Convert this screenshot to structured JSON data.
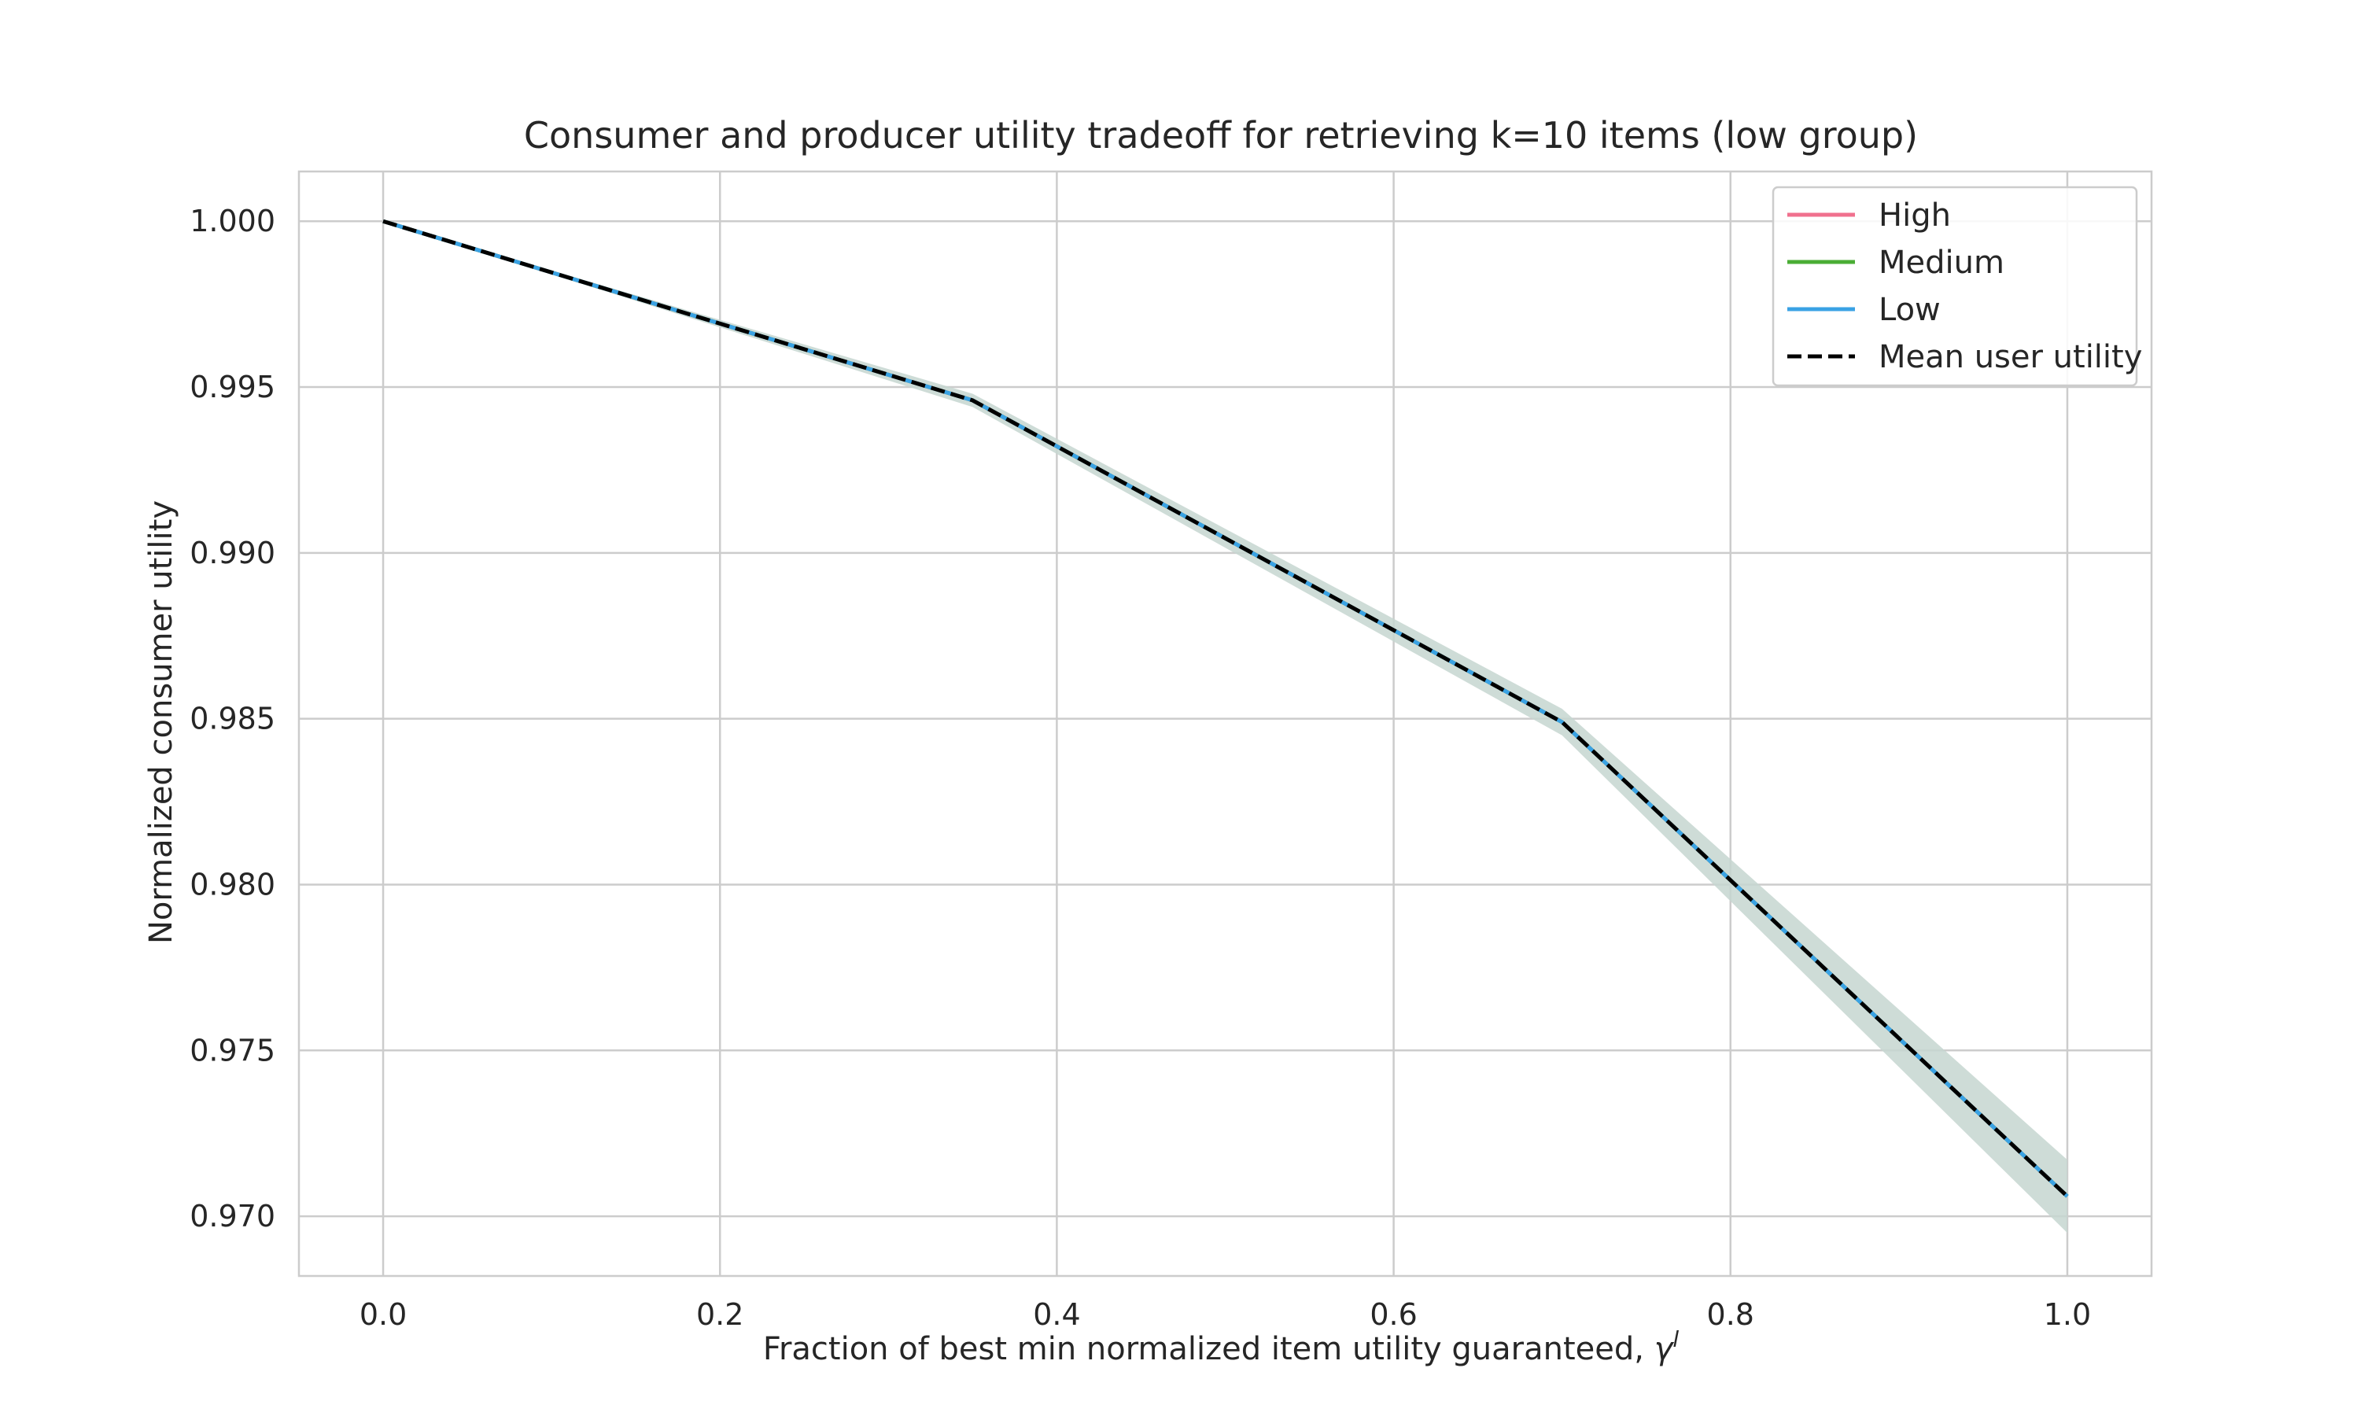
{
  "chart_data": {
    "type": "line",
    "title": "Consumer and producer utility tradeoff for retrieving k=10 items (low group)",
    "xlabel": "Fraction of best min normalized item utility guaranteed, ",
    "xlabel_symbol": "γ",
    "xlabel_superscript": "l",
    "ylabel": "Normalized consumer utility",
    "xlim": [
      -0.05,
      1.05
    ],
    "ylim": [
      0.9682,
      1.0015
    ],
    "x_ticks": [
      "0.0",
      "0.2",
      "0.4",
      "0.6",
      "0.8",
      "1.0"
    ],
    "y_ticks": [
      "0.970",
      "0.975",
      "0.980",
      "0.985",
      "0.990",
      "0.995",
      "1.000"
    ],
    "grid": true,
    "legend_position": "top-right",
    "x": [
      0.0,
      0.35,
      0.7,
      1.0
    ],
    "series": [
      {
        "name": "High",
        "color": "#f0718e",
        "style": "solid",
        "values": [
          1.0,
          0.9946,
          0.9849,
          0.9706
        ]
      },
      {
        "name": "Medium",
        "color": "#4aad35",
        "style": "solid",
        "values": [
          1.0,
          0.9946,
          0.9849,
          0.9706
        ]
      },
      {
        "name": "Low",
        "color": "#3aa2e4",
        "style": "solid",
        "values": [
          1.0,
          0.9946,
          0.9849,
          0.9706
        ],
        "band_lower": [
          1.0,
          0.9944,
          0.9845,
          0.9695
        ],
        "band_upper": [
          1.0,
          0.9948,
          0.9853,
          0.9717
        ]
      },
      {
        "name": "Mean user utility",
        "color": "#000000",
        "style": "dashed",
        "values": [
          1.0,
          0.9946,
          0.9849,
          0.9706
        ]
      }
    ],
    "band_color": "#c5d6d0"
  }
}
